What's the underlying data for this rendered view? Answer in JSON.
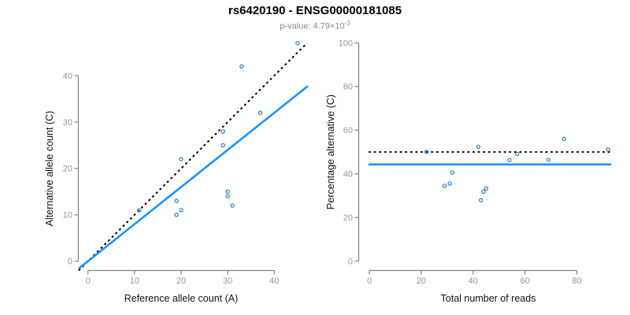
{
  "header": {
    "title": "rs6420190 - ENSG00000181085",
    "subtitle_prefix": "p-value: 4.79×10",
    "subtitle_exponent": "-3"
  },
  "colors": {
    "point": "#2b7fc7",
    "fit_line": "#1e90ff",
    "reference_line": "#000000",
    "axis": "#808080",
    "tick_label": "#969696"
  },
  "chart_data": [
    {
      "type": "scatter",
      "xlabel": "Reference allele count (A)",
      "ylabel": "Alternative allele count (C)",
      "xticks": [
        0,
        10,
        20,
        30,
        40
      ],
      "yticks": [
        0,
        10,
        20,
        30,
        40
      ],
      "xlim": [
        -2,
        47
      ],
      "ylim": [
        -2,
        47
      ],
      "grid": false,
      "points": [
        [
          11,
          11
        ],
        [
          19,
          10
        ],
        [
          19,
          13
        ],
        [
          20,
          11
        ],
        [
          20,
          22
        ],
        [
          29,
          25
        ],
        [
          29,
          28
        ],
        [
          30,
          14
        ],
        [
          30,
          15
        ],
        [
          31,
          12
        ],
        [
          33,
          42
        ],
        [
          37,
          32
        ],
        [
          45,
          47
        ]
      ],
      "lines": [
        {
          "name": "identity-line",
          "style": "dotted",
          "slope": 1,
          "intercept": 0,
          "color_key": "reference_line"
        },
        {
          "name": "fit-line",
          "style": "solid",
          "slope": 0.8,
          "intercept": 0,
          "color_key": "fit_line"
        }
      ]
    },
    {
      "type": "scatter",
      "xlabel": "Total number of reads",
      "ylabel": "Percentage alternative (C)",
      "xticks": [
        0,
        20,
        40,
        60,
        80
      ],
      "yticks": [
        0,
        20,
        40,
        60,
        80,
        100
      ],
      "xlim": [
        -3,
        95
      ],
      "ylim": [
        -4,
        104
      ],
      "grid": false,
      "points": [
        [
          22,
          50
        ],
        [
          29,
          34.5
        ],
        [
          31,
          35.5
        ],
        [
          32,
          40.6
        ],
        [
          42,
          52.4
        ],
        [
          43,
          27.9
        ],
        [
          44,
          31.8
        ],
        [
          45,
          33.3
        ],
        [
          54,
          46.3
        ],
        [
          57,
          49.1
        ],
        [
          69,
          46.4
        ],
        [
          75,
          56
        ],
        [
          92,
          51.1
        ]
      ],
      "lines": [
        {
          "name": "expected-percentage-line",
          "style": "dotted",
          "y": 50,
          "color_key": "reference_line"
        },
        {
          "name": "mean-percentage-line",
          "style": "solid",
          "y": 44.3,
          "color_key": "fit_line"
        }
      ]
    }
  ]
}
